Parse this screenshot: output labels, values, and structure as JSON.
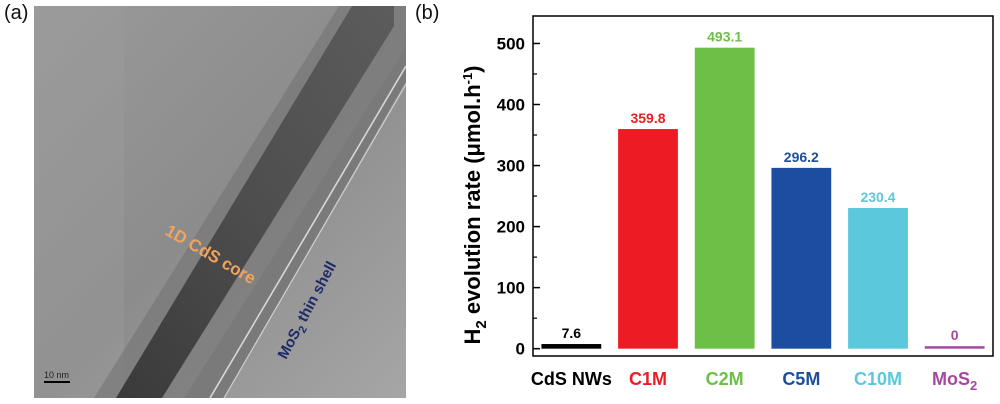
{
  "panels": {
    "a_label": "(a)",
    "b_label": "(b)"
  },
  "tem": {
    "core_label": "1D CdS core",
    "shell_label_main": "MoS",
    "shell_label_sub": "2",
    "shell_label_rest": " thin shell",
    "scale_bar_text": "10 nm"
  },
  "chart_data": {
    "type": "bar",
    "categories": [
      "CdS NWs",
      "C1M",
      "C2M",
      "C5M",
      "C10M",
      "MoS2"
    ],
    "category_display": [
      {
        "main": "CdS NWs",
        "sub": ""
      },
      {
        "main": "C1M",
        "sub": ""
      },
      {
        "main": "C2M",
        "sub": ""
      },
      {
        "main": "C5M",
        "sub": ""
      },
      {
        "main": "C10M",
        "sub": ""
      },
      {
        "main": "MoS",
        "sub": "2"
      }
    ],
    "values": [
      7.6,
      359.8,
      493.1,
      296.2,
      230.4,
      0
    ],
    "value_labels": [
      "7.6",
      "359.8",
      "493.1",
      "296.2",
      "230.4",
      "0"
    ],
    "colors": [
      "#000000",
      "#ed1c24",
      "#6cbf47",
      "#1c4ea0",
      "#5bc8dc",
      "#a4499e"
    ],
    "ylabel_parts": {
      "pre": "H",
      "sub": "2",
      "mid": " evolution rate (μmol.h",
      "sup": "-1",
      "post": ")"
    },
    "yticks": [
      0,
      100,
      200,
      300,
      400,
      500
    ],
    "ylim": [
      -12,
      545
    ],
    "title": "",
    "xlabel": "",
    "grid": false
  }
}
